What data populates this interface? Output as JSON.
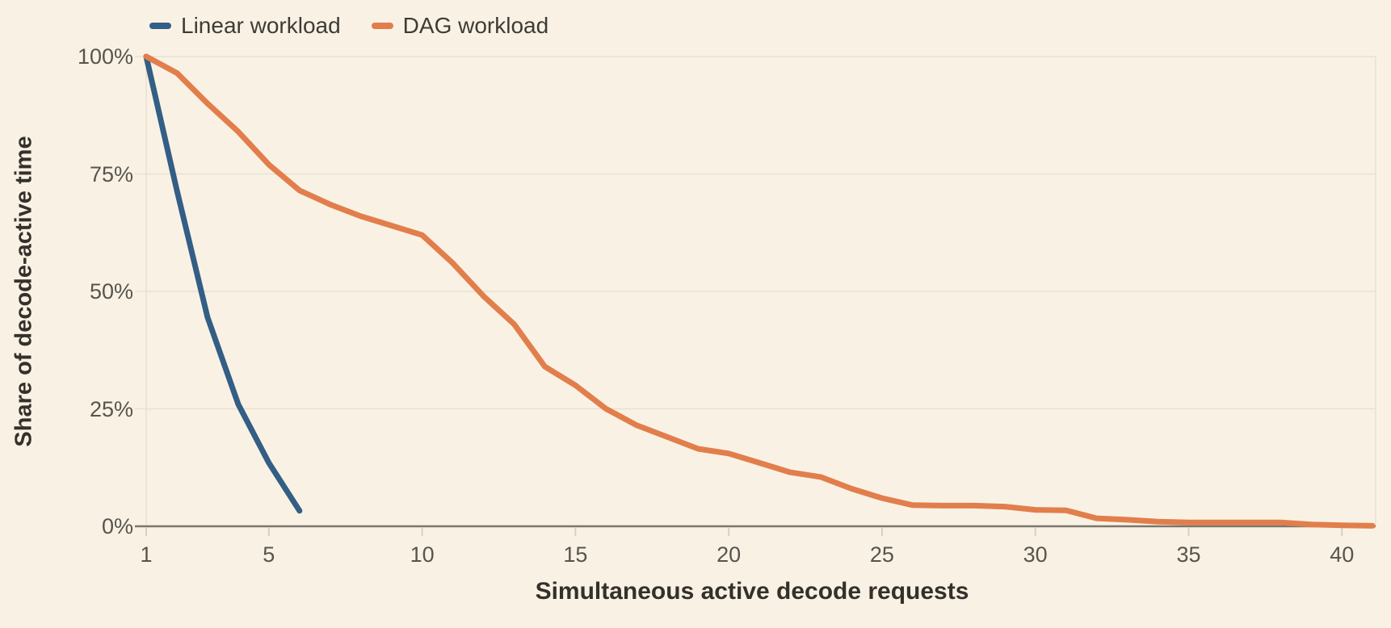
{
  "background_color": "#f9f2e4",
  "legend": {
    "items": [
      {
        "label": "Linear workload",
        "color": "#335e85"
      },
      {
        "label": "DAG workload",
        "color": "#e27e4c"
      }
    ]
  },
  "chart_data": {
    "type": "line",
    "title": "",
    "xlabel": "Simultaneous active decode requests",
    "ylabel": "Share of decode-active time",
    "xlim": [
      1,
      41.1
    ],
    "ylim": [
      0,
      100
    ],
    "x_ticks": [
      1,
      5,
      10,
      15,
      20,
      25,
      30,
      35,
      40
    ],
    "y_ticks": [
      0,
      25,
      50,
      75,
      100
    ],
    "y_tick_labels": [
      "0%",
      "25%",
      "50%",
      "75%",
      "100%"
    ],
    "grid": "horizontal",
    "legend_position": "top-left",
    "series": [
      {
        "name": "Linear workload",
        "color": "#335e85",
        "x": [
          1,
          2,
          3,
          4,
          5,
          6
        ],
        "y": [
          100,
          71.5,
          44.5,
          26,
          13.5,
          3.3
        ]
      },
      {
        "name": "DAG workload",
        "color": "#e27e4c",
        "x": [
          1,
          2,
          3,
          4,
          5,
          6,
          7,
          8,
          9,
          10,
          11,
          12,
          13,
          14,
          15,
          16,
          17,
          18,
          19,
          20,
          21,
          22,
          23,
          24,
          25,
          26,
          27,
          28,
          29,
          30,
          31,
          32,
          33,
          34,
          35,
          36,
          37,
          38,
          39,
          40,
          41
        ],
        "y": [
          100,
          96.5,
          90,
          84,
          77,
          71.5,
          68.5,
          66,
          64,
          62,
          56,
          49,
          43,
          34,
          30,
          25,
          21.5,
          19,
          16.5,
          15.5,
          13.5,
          11.5,
          10.5,
          8,
          6,
          4.5,
          4.4,
          4.4,
          4.2,
          3.5,
          3.4,
          1.7,
          1.4,
          1.0,
          0.8,
          0.8,
          0.8,
          0.8,
          0.4,
          0.2,
          0.1
        ]
      }
    ]
  }
}
